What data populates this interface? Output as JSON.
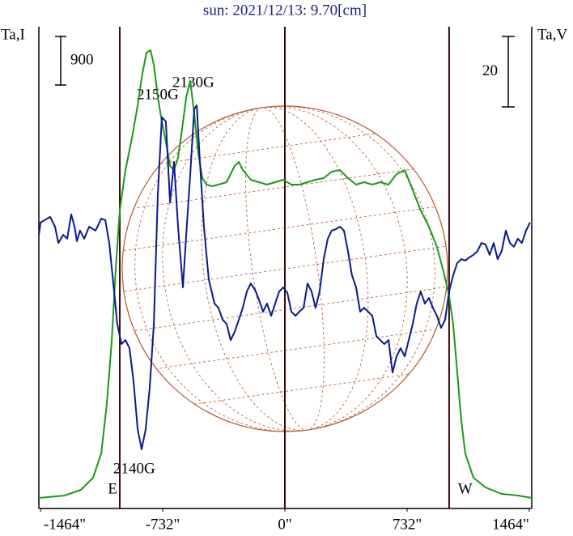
{
  "chart_data": {
    "type": "line",
    "title": "sun: 2021/12/13: 9.70[cm]",
    "y_label": "Ta,I",
    "y2_label": "Ta,V",
    "xlim": [
      -1474,
      1479
    ],
    "xticks": [
      {
        "value": -1464,
        "label": "-1464\""
      },
      {
        "value": -732,
        "label": "-732\""
      },
      {
        "value": 0,
        "label": "0\""
      },
      {
        "value": 732,
        "label": "732\""
      },
      {
        "value": 1464,
        "label": "1464\""
      }
    ],
    "ylim": [
      -150,
      8775
    ],
    "y2lim": [
      -68.4,
      68.4
    ],
    "y_scale_bar": 900,
    "y2_scale_bar": 20,
    "markers": [
      {
        "x": -989,
        "label": "E"
      },
      {
        "x": 0
      },
      {
        "x": 984,
        "label": "W"
      }
    ],
    "annotations": [
      "2150G",
      "2130G",
      "2140G"
    ],
    "series": [
      {
        "color": "#1a9a1a",
        "x": [
          -1474,
          -1319,
          -1222,
          -1149,
          -1100,
          -1067,
          -1037,
          -1013,
          -989,
          -955,
          -916,
          -882,
          -853,
          -829,
          -805,
          -785,
          -761,
          -737,
          -713,
          -688,
          -664,
          -640,
          -616,
          -591,
          -567,
          -543,
          -519,
          -494,
          -470,
          -436,
          -398,
          -349,
          -301,
          -276,
          -252,
          -204,
          -155,
          -107,
          -58,
          -10,
          39,
          87,
          136,
          184,
          233,
          281,
          330,
          378,
          427,
          475,
          524,
          572,
          621,
          669,
          718,
          766,
          814,
          863,
          911,
          950,
          984,
          1008,
          1033,
          1057,
          1081,
          1130,
          1202,
          1299,
          1396,
          1479
        ],
        "values": [
          45,
          90,
          195,
          420,
          870,
          1770,
          2970,
          4320,
          5370,
          6120,
          6720,
          7320,
          7920,
          8295,
          8340,
          8070,
          7470,
          7020,
          6645,
          6195,
          6120,
          6345,
          6870,
          7470,
          7770,
          7170,
          6420,
          5970,
          5850,
          5820,
          5850,
          5895,
          6195,
          6270,
          6120,
          5940,
          5895,
          5850,
          5895,
          5940,
          5850,
          5850,
          5895,
          5940,
          5970,
          6090,
          6120,
          5970,
          5850,
          5895,
          5850,
          5895,
          5850,
          6045,
          6120,
          5745,
          5370,
          5070,
          4695,
          4245,
          3795,
          3270,
          2370,
          1470,
          870,
          420,
          240,
          120,
          90,
          45
        ]
      },
      {
        "color": "#0a1a8c",
        "axis": "y2",
        "x": [
          -1474,
          -1464,
          -1406,
          -1377,
          -1357,
          -1328,
          -1304,
          -1280,
          -1260,
          -1246,
          -1227,
          -1202,
          -1173,
          -1134,
          -1100,
          -1076,
          -1052,
          -1028,
          -1004,
          -979,
          -955,
          -931,
          -907,
          -882,
          -858,
          -834,
          -810,
          -785,
          -761,
          -737,
          -713,
          -688,
          -664,
          -640,
          -611,
          -591,
          -567,
          -543,
          -528,
          -509,
          -485,
          -456,
          -422,
          -398,
          -373,
          -349,
          -325,
          -301,
          -276,
          -252,
          -228,
          -204,
          -179,
          -155,
          -131,
          -107,
          -82,
          -58,
          -34,
          -10,
          15,
          39,
          63,
          87,
          112,
          136,
          160,
          184,
          208,
          233,
          257,
          281,
          305,
          330,
          354,
          378,
          402,
          427,
          451,
          475,
          499,
          524,
          548,
          572,
          596,
          621,
          645,
          669,
          693,
          718,
          742,
          766,
          790,
          814,
          839,
          863,
          887,
          911,
          936,
          960,
          984,
          1008,
          1033,
          1057,
          1081,
          1105,
          1130,
          1154,
          1178,
          1202,
          1227,
          1251,
          1275,
          1299,
          1324,
          1348,
          1372,
          1396,
          1420,
          1445,
          1469
        ],
        "values": [
          9.3,
          12.8,
          14.4,
          11.6,
          7.0,
          9.3,
          8.2,
          15.1,
          11.6,
          7.5,
          10.5,
          8.2,
          11.6,
          10.5,
          13.9,
          13.5,
          7.0,
          -4.5,
          -16.0,
          -21.7,
          -20.6,
          -22.9,
          -32.1,
          -45.9,
          -51.6,
          -45.9,
          -34.4,
          -16.0,
          20.8,
          42.7,
          41.5,
          18.5,
          30.0,
          11.6,
          -5.6,
          9.3,
          26.6,
          45.0,
          46.1,
          30.0,
          11.6,
          -3.3,
          -10.2,
          -11.4,
          -14.8,
          -16.0,
          -20.6,
          -18.3,
          -14.8,
          -11.4,
          -6.8,
          -4.5,
          -6.3,
          -9.1,
          -12.5,
          -10.2,
          -13.7,
          -10.2,
          -6.8,
          -5.6,
          -7.2,
          -12.5,
          -13.7,
          -12.5,
          -11.4,
          -4.5,
          -6.8,
          -11.4,
          -6.8,
          2.4,
          8.2,
          10.5,
          10.9,
          11.6,
          10.5,
          4.7,
          -2.2,
          -5.6,
          -12.5,
          -11.4,
          -12.5,
          -13.7,
          -19.4,
          -20.6,
          -21.7,
          -20.6,
          -29.8,
          -25.2,
          -22.9,
          -25.2,
          -20.6,
          -16.0,
          -10.2,
          -6.8,
          -10.2,
          -8.6,
          -11.4,
          -13.7,
          -17.1,
          -14.8,
          -6.8,
          -2.2,
          1.3,
          2.4,
          2.0,
          2.9,
          3.6,
          4.7,
          7.0,
          6.6,
          3.6,
          7.0,
          2.4,
          4.7,
          10.5,
          7.0,
          5.9,
          8.2,
          7.0,
          10.5,
          12.8
        ]
      }
    ]
  }
}
